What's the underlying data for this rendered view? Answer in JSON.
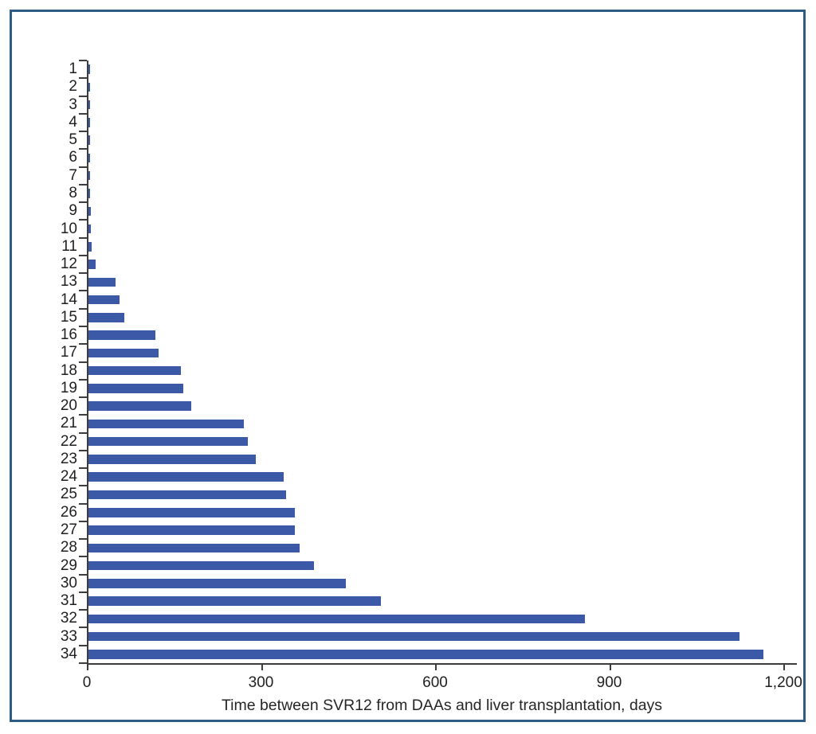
{
  "chart_data": {
    "type": "bar",
    "orientation": "horizontal",
    "xlabel": "Time between SVR12 from DAAs and liver transplantation, days",
    "categories": [
      "1",
      "2",
      "3",
      "4",
      "5",
      "6",
      "7",
      "8",
      "9",
      "10",
      "11",
      "12",
      "13",
      "14",
      "15",
      "16",
      "17",
      "18",
      "19",
      "20",
      "21",
      "22",
      "23",
      "24",
      "25",
      "26",
      "27",
      "28",
      "29",
      "30",
      "31",
      "32",
      "33",
      "34"
    ],
    "values": [
      2,
      2,
      2,
      2,
      3,
      3,
      3,
      3,
      4,
      4,
      6,
      13,
      47,
      53,
      62,
      116,
      121,
      159,
      163,
      177,
      268,
      275,
      289,
      337,
      340,
      355,
      356,
      364,
      389,
      444,
      504,
      855,
      1122,
      1163
    ],
    "xlim": [
      0,
      1200
    ],
    "x_ticks": [
      {
        "value": 0,
        "label": "0"
      },
      {
        "value": 300,
        "label": "300"
      },
      {
        "value": 600,
        "label": "600"
      },
      {
        "value": 900,
        "label": "900"
      },
      {
        "value": 1200,
        "label": "1,200"
      }
    ],
    "grid": false,
    "legend": false,
    "bar_color": "#3b59a6",
    "axis_color": "#3d3d3d",
    "frame_color": "#2e5c84"
  }
}
